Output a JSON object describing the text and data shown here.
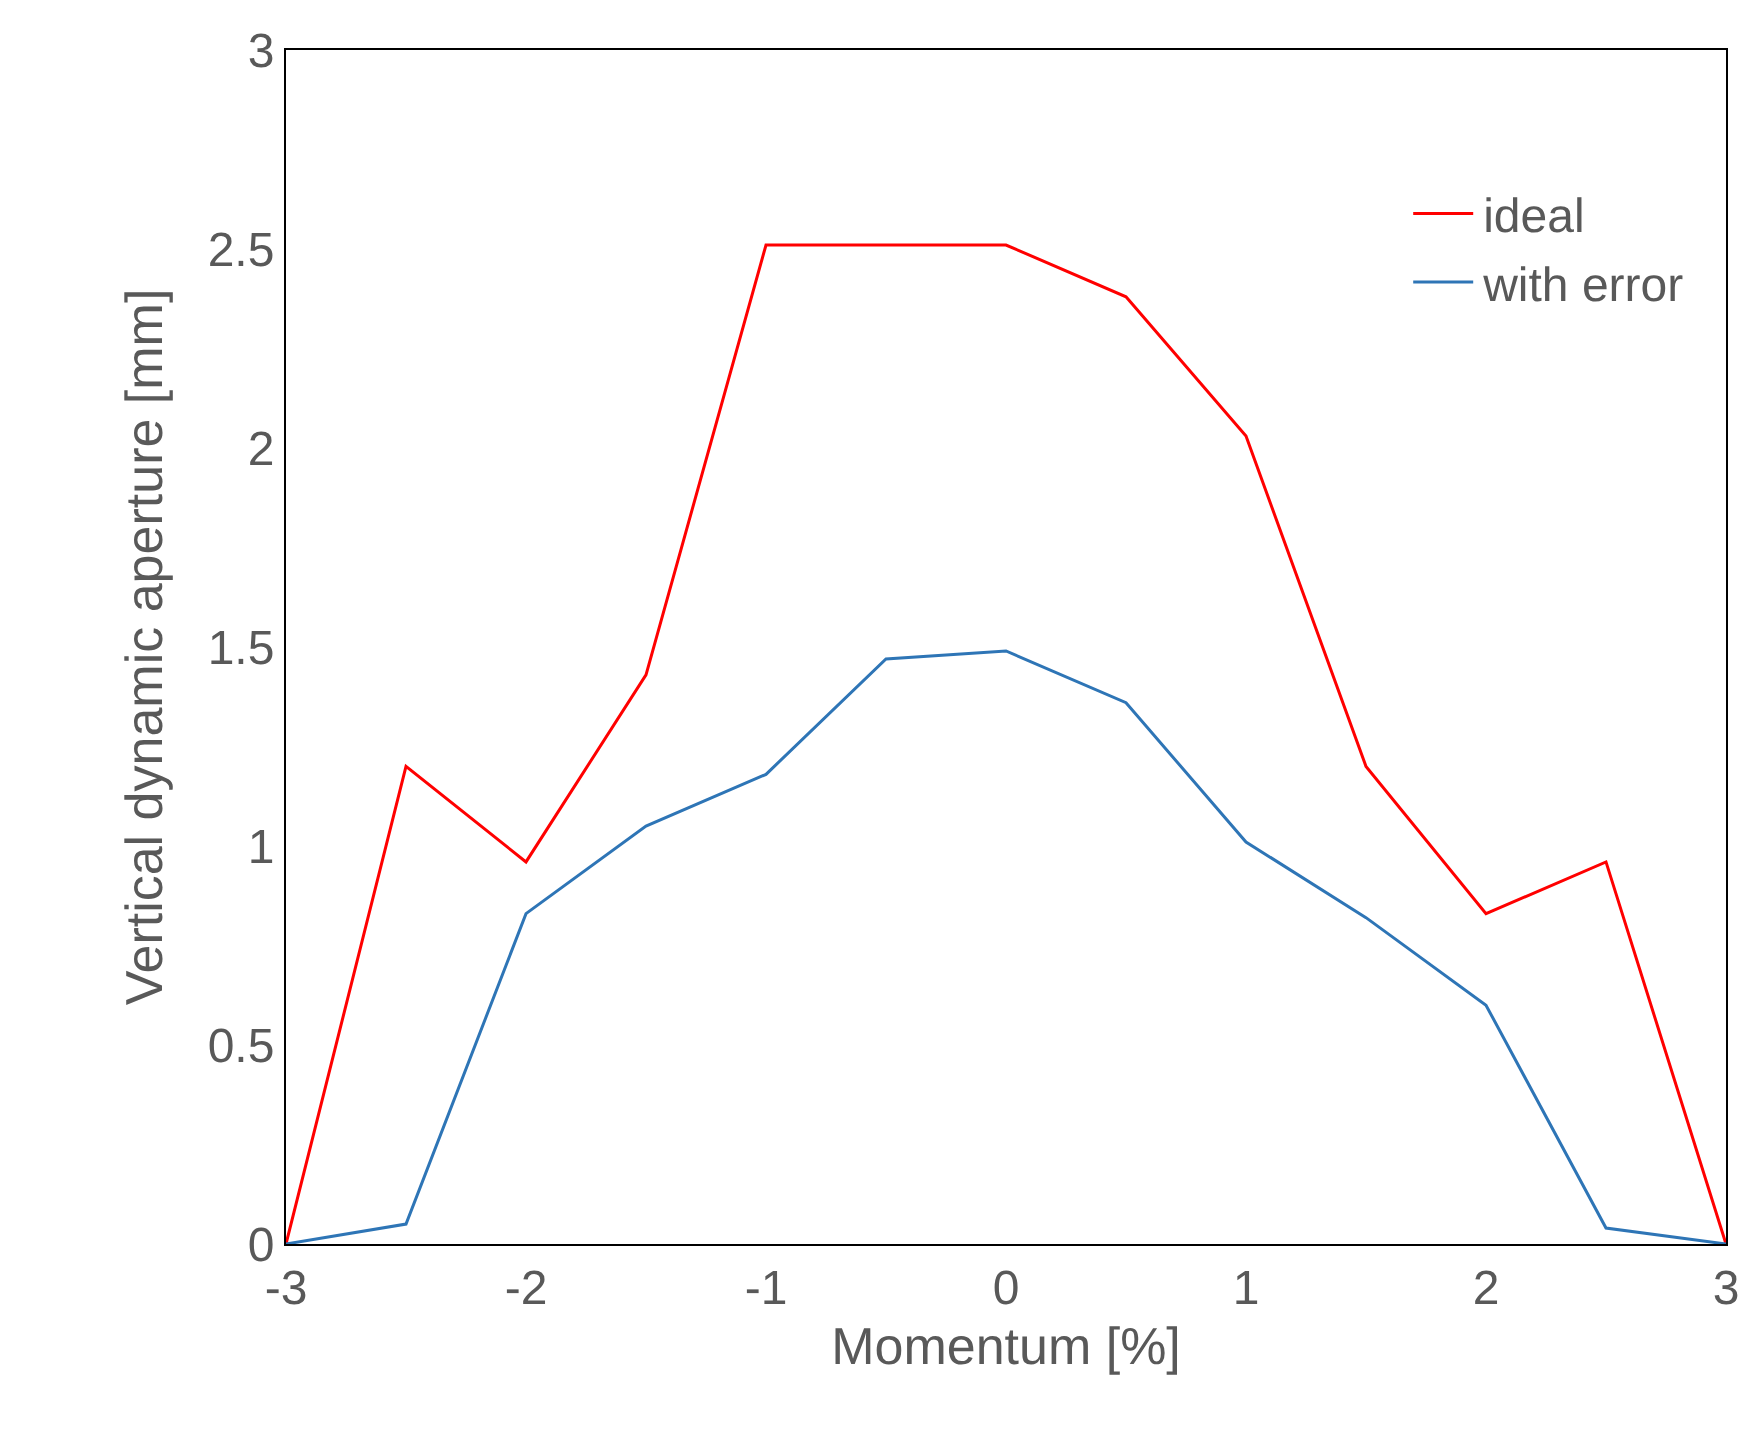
{
  "chart_data": {
    "type": "line",
    "xlabel": "Momentum [%]",
    "ylabel": "Vertical dynamic aperture [mm]",
    "x": [
      -3,
      -2.5,
      -2,
      -1.5,
      -1,
      -0.5,
      0,
      0.5,
      1,
      1.5,
      2,
      2.5,
      3
    ],
    "series": [
      {
        "name": "ideal",
        "color": "#ff0000",
        "values": [
          0,
          1.2,
          0.96,
          1.43,
          2.51,
          2.51,
          2.51,
          2.38,
          2.03,
          1.2,
          0.83,
          0.96,
          0
        ]
      },
      {
        "name": "with error",
        "color": "#2e75b6",
        "values": [
          0,
          0.05,
          0.83,
          1.05,
          1.18,
          1.47,
          1.49,
          1.36,
          1.01,
          0.82,
          0.6,
          0.04,
          0
        ]
      }
    ],
    "xlim": [
      -3,
      3
    ],
    "xticks": [
      -3,
      -2,
      -1,
      0,
      1,
      2,
      3
    ],
    "ylim": [
      0,
      3
    ],
    "yticks": [
      0,
      0.5,
      1,
      1.5,
      2,
      2.5,
      3
    ],
    "legend": "top right",
    "marker": "none",
    "line_style": "solid"
  }
}
